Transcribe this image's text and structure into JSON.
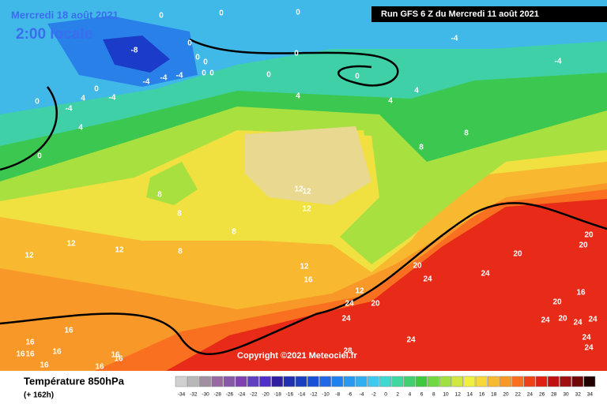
{
  "header": {
    "date": "Mercredi 18 août 2021",
    "time": "2:00 locale",
    "run": "Run GFS 6 Z du Mercredi 11 août 2021"
  },
  "copyright": "Copyright ©2021 Meteociel.fr",
  "legend": {
    "title": "Température 850hPa",
    "subtitle": "(+ 162h)",
    "scale": [
      -34,
      -32,
      -30,
      -28,
      -26,
      -24,
      -22,
      -20,
      -18,
      -16,
      -14,
      -12,
      -10,
      -8,
      -6,
      -4,
      -2,
      0,
      2,
      4,
      6,
      8,
      10,
      12,
      14,
      16,
      18,
      20,
      22,
      24,
      26,
      28,
      30,
      32,
      34
    ],
    "colors": [
      "#d0d0d0",
      "#b8b8b8",
      "#a090a0",
      "#9868a0",
      "#8858a8",
      "#8040b0",
      "#6040c0",
      "#5030c8",
      "#3020a0",
      "#2030b0",
      "#1840c0",
      "#1850d8",
      "#2068e8",
      "#2080f0",
      "#2898f0",
      "#30b0f0",
      "#40c8f0",
      "#40d8d0",
      "#40d8a0",
      "#40d070",
      "#40c840",
      "#70d840",
      "#a0e040",
      "#d0e840",
      "#f0f040",
      "#f8d838",
      "#f8b830",
      "#f89828",
      "#f87020",
      "#f04018",
      "#e02010",
      "#c01010",
      "#a01010",
      "#700808",
      "#200000"
    ]
  },
  "contour_labels": [
    0,
    0,
    0,
    -8,
    0,
    0,
    0,
    0,
    0,
    0,
    0,
    0,
    -4,
    -4,
    -4,
    -4,
    -4,
    4,
    4,
    4,
    4,
    -4,
    0,
    0,
    -4,
    4,
    0,
    8,
    8,
    8,
    8,
    8,
    8,
    12,
    12,
    12,
    12,
    12,
    12,
    12,
    16,
    12,
    20,
    24,
    20,
    24,
    24,
    20,
    20,
    20,
    24,
    16,
    20,
    20,
    24,
    24,
    24,
    24,
    24,
    16,
    16,
    16,
    16,
    16,
    16,
    16,
    16,
    16,
    24,
    28
  ]
}
